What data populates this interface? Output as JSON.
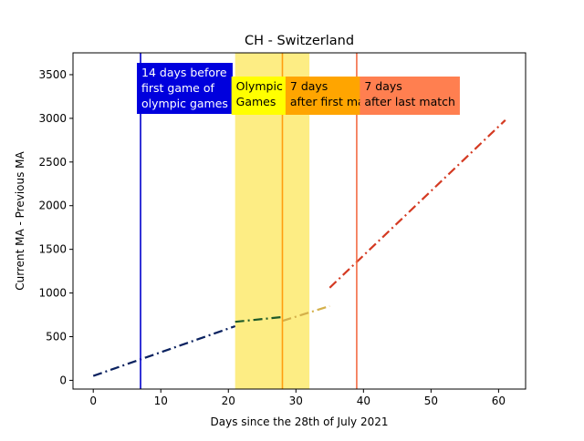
{
  "chart_data": {
    "type": "line",
    "title": "CH - Switzerland",
    "xlabel": "Days since the 28th of July 2021",
    "ylabel": "Current MA - Previous MA",
    "xlim": [
      -3,
      64
    ],
    "ylim": [
      -100,
      3750
    ],
    "xticks": [
      0,
      10,
      20,
      30,
      40,
      50,
      60
    ],
    "yticks": [
      0,
      500,
      1000,
      1500,
      2000,
      2500,
      3000,
      3500
    ],
    "grid": false,
    "olympic_span": {
      "x": [
        21,
        32
      ],
      "color": "#fdec7d"
    },
    "vlines": [
      {
        "x": 7,
        "color": "#0000cc"
      },
      {
        "x": 28,
        "color": "#ff9e10"
      },
      {
        "x": 39,
        "color": "#f26b45"
      }
    ],
    "annotations": [
      {
        "lines": [
          "14 days before",
          "first game of",
          "olympic games"
        ],
        "x": 7,
        "bg": "#0000dd",
        "fg": "#ffffff"
      },
      {
        "lines": [
          "Olympic",
          "Games"
        ],
        "x": 21,
        "bg": "#ffff00",
        "fg": "#000000"
      },
      {
        "lines": [
          "7 days",
          "after first match"
        ],
        "x": 29,
        "bg": "#ffa500",
        "fg": "#000000"
      },
      {
        "lines": [
          "7 days",
          "after last match"
        ],
        "x": 40,
        "bg": "#ff7f50",
        "fg": "#000000"
      }
    ],
    "series": [
      {
        "x": [
          0,
          21
        ],
        "y": [
          50,
          620
        ],
        "color": "#0b2260",
        "style": "dashdot"
      },
      {
        "x": [
          21,
          28
        ],
        "y": [
          670,
          725
        ],
        "color": "#1e5a28",
        "style": "dashdot"
      },
      {
        "x": [
          28,
          35
        ],
        "y": [
          680,
          850
        ],
        "color": "#d4b04a",
        "style": "dashdot"
      },
      {
        "x": [
          35,
          61
        ],
        "y": [
          1060,
          2980
        ],
        "color": "#d43a22",
        "style": "dashdot"
      }
    ]
  }
}
